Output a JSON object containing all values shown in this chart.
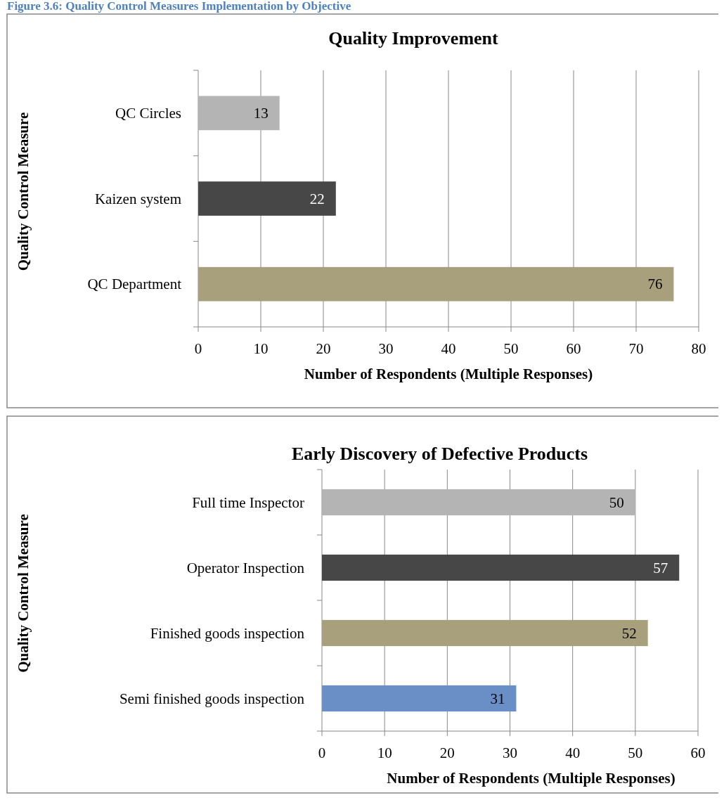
{
  "chart_data": [
    {
      "type": "bar",
      "orientation": "horizontal",
      "title": "Quality Improvement",
      "annotations": [
        "Figure 3.6: Quality Control Measures Implementation by Objective"
      ],
      "xlabel": "Number of Respondents (Multiple Responses)",
      "ylabel": "Quality Control Measure",
      "categories": [
        "QC Circles",
        "Kaizen system",
        "QC Department"
      ],
      "values": [
        13,
        22,
        76
      ],
      "colors": [
        "#b4b4b4",
        "#474747",
        "#a8a07c"
      ],
      "xlim": [
        0,
        80
      ],
      "xticks": [
        0,
        10,
        20,
        30,
        40,
        50,
        60,
        70,
        80
      ],
      "grid": "x",
      "data_labels": true
    },
    {
      "type": "bar",
      "orientation": "horizontal",
      "title": "Early Discovery of Defective Products",
      "xlabel": "Number of Respondents (Multiple Responses)",
      "ylabel": "Quality Control Measure",
      "categories": [
        "Full time Inspector",
        "Operator Inspection",
        "Finished goods inspection",
        "Semi finished goods inspection"
      ],
      "values": [
        50,
        57,
        52,
        31
      ],
      "colors": [
        "#b4b4b4",
        "#474747",
        "#a8a07c",
        "#6a8fc6"
      ],
      "xlim": [
        0,
        60
      ],
      "xticks": [
        0,
        10,
        20,
        30,
        40,
        50,
        60
      ],
      "grid": "x",
      "data_labels": true
    }
  ]
}
